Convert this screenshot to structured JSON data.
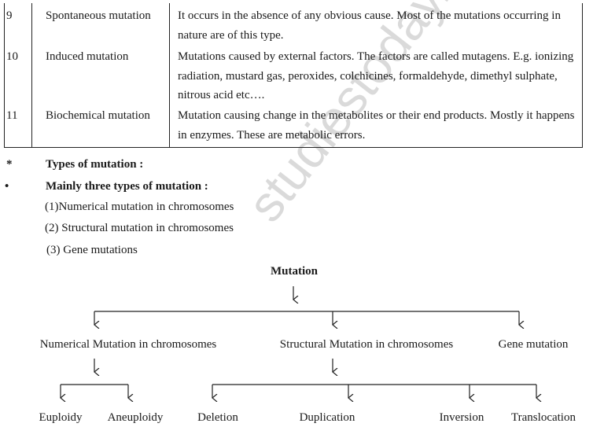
{
  "table": {
    "rows": [
      {
        "no": "9",
        "term": "Spontaneous mutation",
        "description": "It occurs in the absence of any obvious cause. Most of the mutations occurring in nature are of this type."
      },
      {
        "no": "10",
        "term": "Induced mutation",
        "description": "Mutations caused by external factors. The factors are called mutagens. E.g. ionizing radiation, mustard gas, peroxides, colchicines, formaldehyde, dimethyl sulphate, nitrous acid etc…."
      },
      {
        "no": "11",
        "term": "Biochemical mutation",
        "description": "Mutation causing change in the metabolites or their end products. Mostly it happens in enzymes. These are metabolic errors."
      }
    ]
  },
  "types_heading": {
    "bullet": "*",
    "text": "Types of mutation :"
  },
  "main_heading": {
    "bullet": "•",
    "text": "Mainly three types of mutation :"
  },
  "list": [
    "(1)Numerical mutation in chromosomes",
    "(2) Structural mutation in chromosomes",
    "(3) Gene mutations"
  ],
  "diagram": {
    "root": "Mutation",
    "level1": [
      "Numerical Mutation in chromosomes",
      "Structural Mutation in chromosomes",
      "Gene mutation"
    ],
    "numerical_children": [
      "Euploidy",
      "Aneuploidy"
    ],
    "structural_children": [
      "Deletion",
      "Duplication",
      "Inversion",
      "Translocation"
    ]
  },
  "watermark": "studiestoday.com"
}
